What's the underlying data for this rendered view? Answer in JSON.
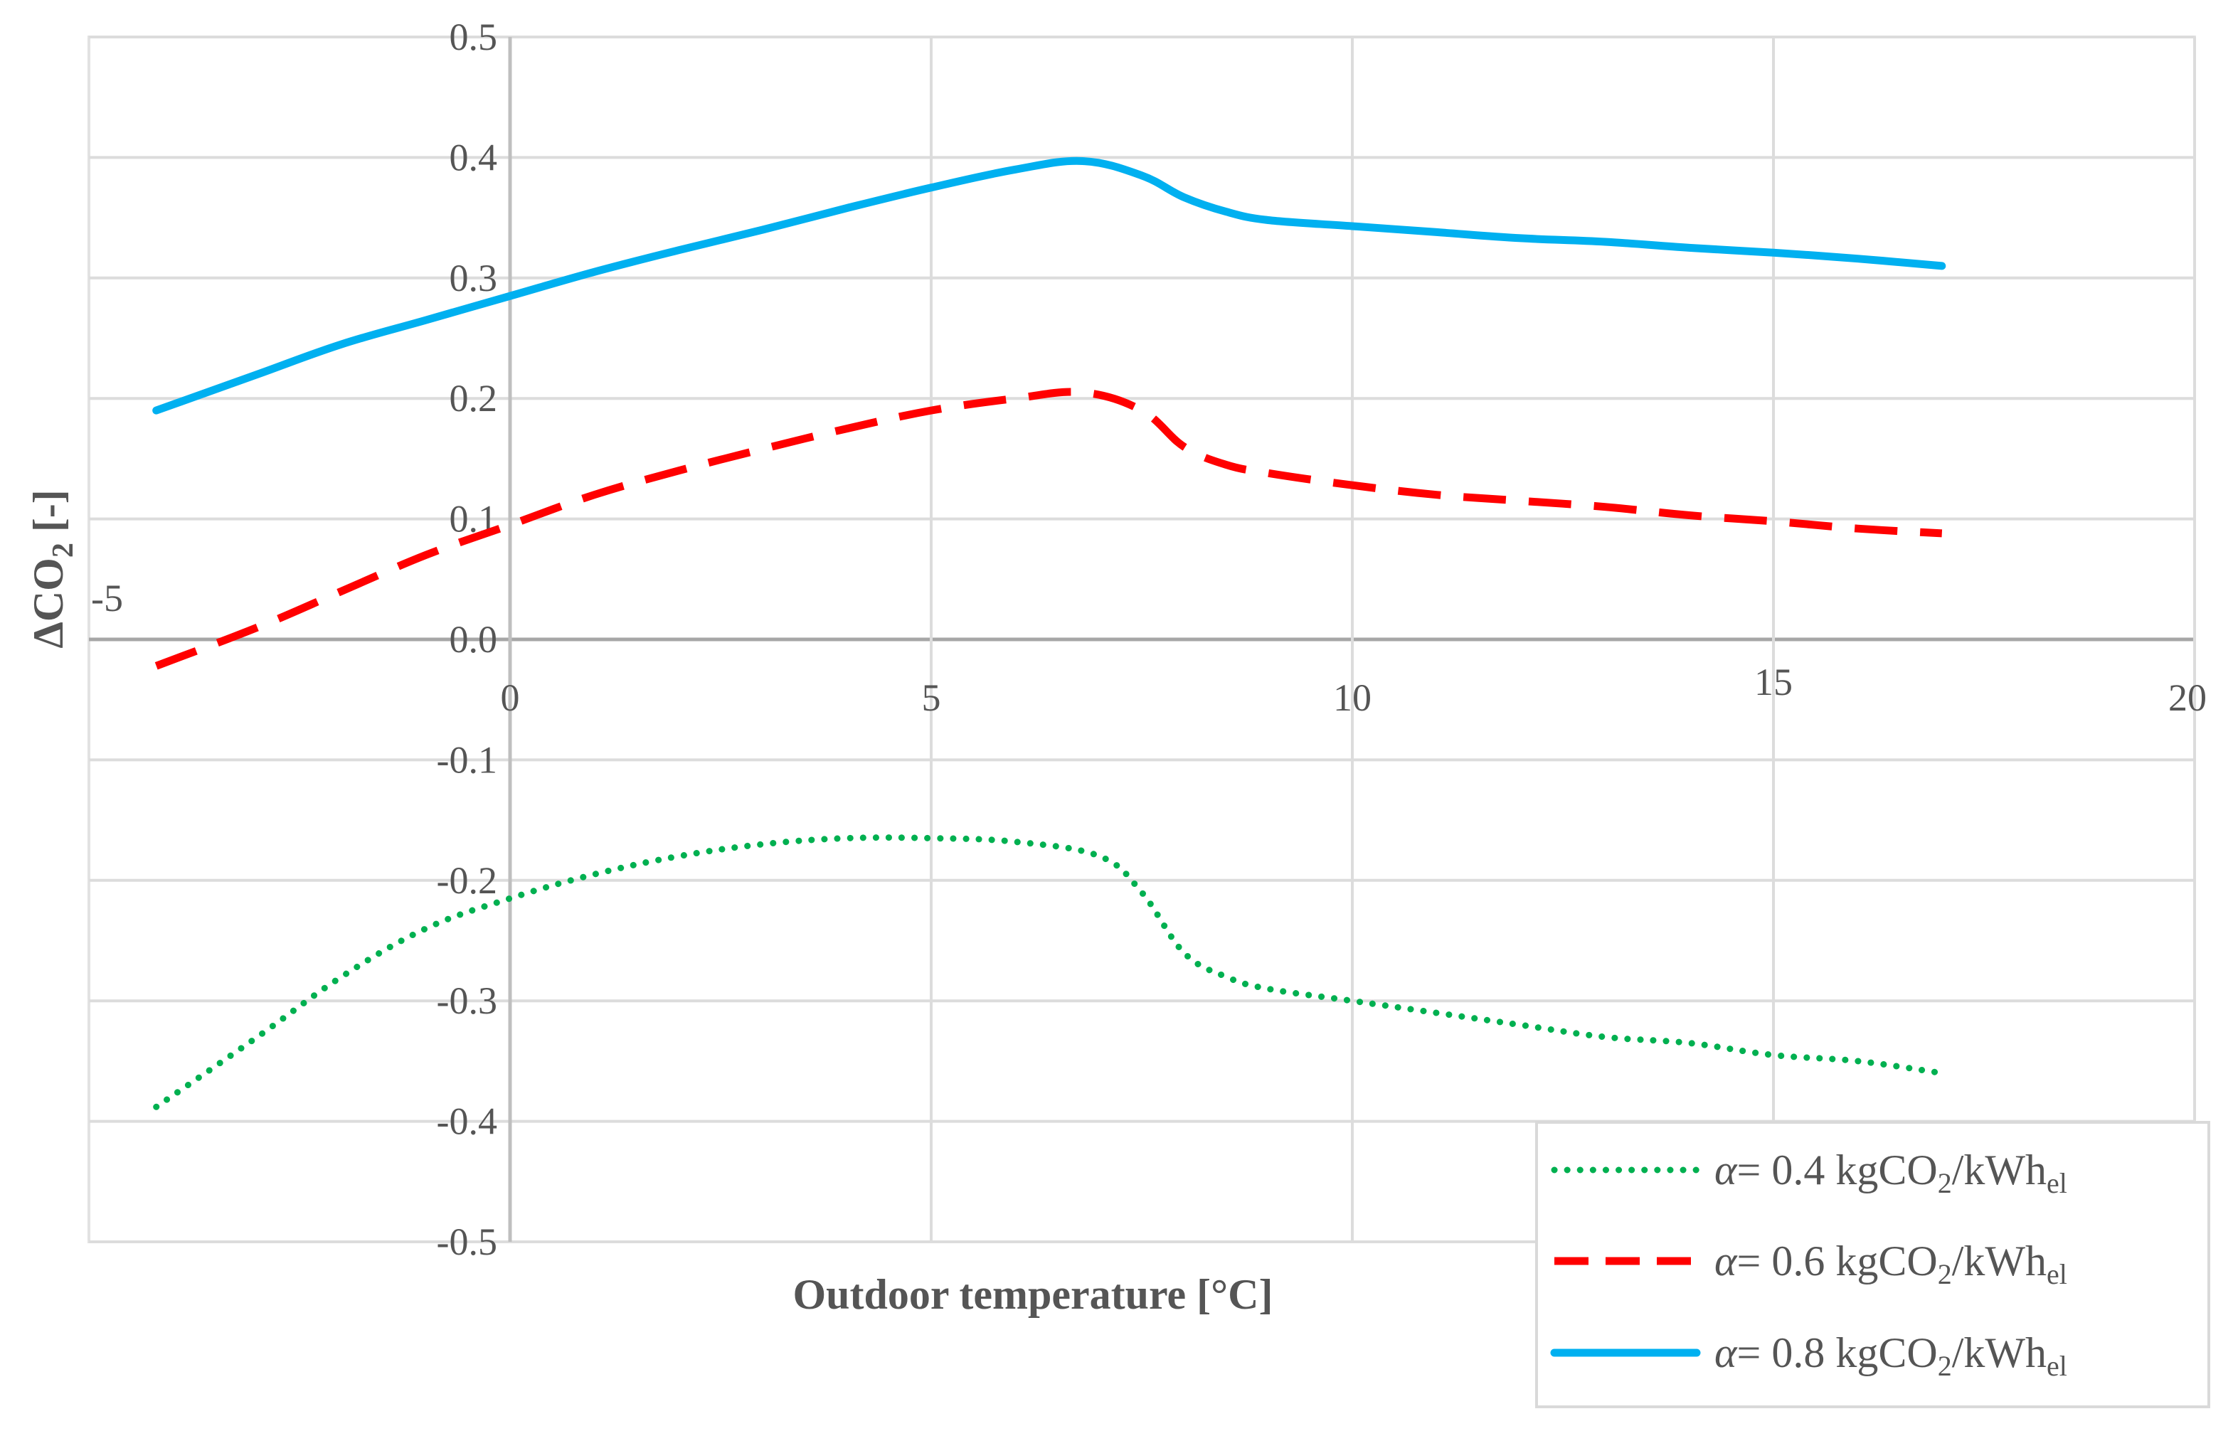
{
  "chart_data": {
    "type": "line",
    "title": "",
    "xlabel": "Outdoor temperature [°C]",
    "ylabel": "ΔCO2 [-]",
    "ylabel_parts": {
      "main": "ΔCO",
      "sub": "2",
      "tail": " [-]"
    },
    "xlim": [
      -5,
      20
    ],
    "ylim": [
      -0.5,
      0.5
    ],
    "x_ticks": [
      {
        "value": -5,
        "label": "-5"
      },
      {
        "value": 0,
        "label": "0"
      },
      {
        "value": 5,
        "label": "5"
      },
      {
        "value": 10,
        "label": "10"
      },
      {
        "value": 15,
        "label": "15"
      },
      {
        "value": 20,
        "label": "20"
      }
    ],
    "y_ticks": [
      {
        "value": 0.5,
        "label": "0.5"
      },
      {
        "value": 0.4,
        "label": "0.4"
      },
      {
        "value": 0.3,
        "label": "0.3"
      },
      {
        "value": 0.2,
        "label": "0.2"
      },
      {
        "value": 0.1,
        "label": "0.1"
      },
      {
        "value": 0.0,
        "label": "0.0"
      },
      {
        "value": -0.1,
        "label": "-0.1"
      },
      {
        "value": -0.2,
        "label": "-0.2"
      },
      {
        "value": -0.3,
        "label": "-0.3"
      },
      {
        "value": -0.4,
        "label": "-0.4"
      },
      {
        "value": -0.5,
        "label": "-0.5"
      }
    ],
    "grid": true,
    "legend_position": "bottom-right",
    "series": [
      {
        "name": "α= 0.4 kgCO2/kWhel",
        "label_parts": {
          "alpha": "α",
          "value": "= 0.4 kgCO",
          "sub1": "2",
          "unit": "/kWh",
          "sub2": "el"
        },
        "color": "#00b050",
        "style": "dotted",
        "x": [
          -4.2,
          -3,
          -2,
          -1,
          0,
          1,
          2,
          3,
          4,
          5,
          6,
          7,
          7.5,
          8,
          8.5,
          9,
          10,
          11,
          12,
          13,
          14,
          15,
          16,
          17
        ],
        "y": [
          -0.388,
          -0.33,
          -0.28,
          -0.24,
          -0.215,
          -0.195,
          -0.18,
          -0.17,
          -0.165,
          -0.165,
          -0.168,
          -0.18,
          -0.21,
          -0.26,
          -0.28,
          -0.29,
          -0.3,
          -0.31,
          -0.32,
          -0.33,
          -0.335,
          -0.345,
          -0.35,
          -0.36
        ]
      },
      {
        "name": "α= 0.6 kgCO2/kWhel",
        "label_parts": {
          "alpha": "α",
          "value": "= 0.6 kgCO",
          "sub1": "2",
          "unit": "/kWh",
          "sub2": "el"
        },
        "color": "#ff0000",
        "style": "dashed",
        "x": [
          -4.2,
          -3,
          -2,
          -1,
          0,
          1,
          2,
          3,
          4,
          5,
          6,
          6.8,
          7.5,
          8,
          8.5,
          9,
          10,
          11,
          12,
          13,
          14,
          15,
          16,
          17
        ],
        "y": [
          -0.022,
          0.01,
          0.04,
          0.07,
          0.095,
          0.12,
          0.14,
          0.158,
          0.175,
          0.19,
          0.2,
          0.205,
          0.19,
          0.16,
          0.145,
          0.138,
          0.128,
          0.12,
          0.115,
          0.11,
          0.103,
          0.098,
          0.092,
          0.088
        ]
      },
      {
        "name": "α= 0.8 kgCO2/kWhel",
        "label_parts": {
          "alpha": "α",
          "value": "= 0.8 kgCO",
          "sub1": "2",
          "unit": "/kWh",
          "sub2": "el"
        },
        "color": "#00b0f0",
        "style": "solid",
        "x": [
          -4.2,
          -3,
          -2,
          -1,
          0,
          1,
          2,
          3,
          4,
          5,
          6,
          6.8,
          7.5,
          8,
          8.5,
          9,
          10,
          11,
          12,
          13,
          14,
          15,
          16,
          17
        ],
        "y": [
          0.19,
          0.22,
          0.245,
          0.265,
          0.285,
          0.305,
          0.323,
          0.34,
          0.358,
          0.375,
          0.39,
          0.397,
          0.385,
          0.367,
          0.355,
          0.348,
          0.343,
          0.338,
          0.333,
          0.33,
          0.325,
          0.321,
          0.316,
          0.31
        ]
      }
    ]
  }
}
